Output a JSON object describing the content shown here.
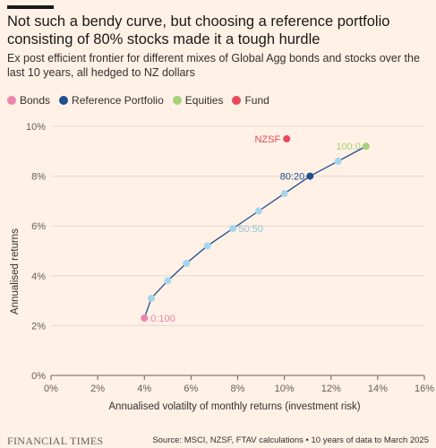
{
  "title": "Not such a bendy curve, but choosing a reference portfolio consisting of 80% stocks made it a tough hurdle",
  "subtitle": "Ex post efficient frontier for different mixes of Global Agg bonds and stocks over the last 10 years, all hedged to NZ dollars",
  "legend": [
    {
      "label": "Bonds",
      "color": "#f083ae"
    },
    {
      "label": "Reference Portfolio",
      "color": "#1f4f8f"
    },
    {
      "label": "Equities",
      "color": "#a7d17a"
    },
    {
      "label": "Fund",
      "color": "#e8495c"
    }
  ],
  "chart_data": {
    "type": "scatter",
    "xlabel": "Annualised volatilty of monthly returns (investment risk)",
    "ylabel": "Annualised returns",
    "xlim": [
      0,
      16
    ],
    "ylim": [
      0,
      10
    ],
    "x_ticks": [
      "0%",
      "2%",
      "4%",
      "6%",
      "8%",
      "10%",
      "12%",
      "14%",
      "16%"
    ],
    "y_ticks": [
      "0%",
      "2%",
      "4%",
      "6%",
      "8%",
      "10%"
    ],
    "line_color": "#1f4f8f",
    "grid": "horizontal",
    "frontier": [
      {
        "x": 4.0,
        "y": 2.3,
        "color": "#f083ae",
        "label": "0:100",
        "label_color": "#f083ae"
      },
      {
        "x": 4.3,
        "y": 3.1,
        "color": "#a6d6ee"
      },
      {
        "x": 5.0,
        "y": 3.8,
        "color": "#a6d6ee"
      },
      {
        "x": 5.8,
        "y": 4.5,
        "color": "#a6d6ee"
      },
      {
        "x": 6.7,
        "y": 5.2,
        "color": "#a6d6ee"
      },
      {
        "x": 7.8,
        "y": 5.9,
        "color": "#a6d6ee",
        "label": "50:50",
        "label_color": "#8ec3dc"
      },
      {
        "x": 8.9,
        "y": 6.6,
        "color": "#a6d6ee"
      },
      {
        "x": 10.0,
        "y": 7.3,
        "color": "#a6d6ee"
      },
      {
        "x": 11.1,
        "y": 8.0,
        "color": "#1f4f8f",
        "label": "80:20",
        "label_color": "#1f4f8f"
      },
      {
        "x": 12.3,
        "y": 8.6,
        "color": "#a6d6ee"
      },
      {
        "x": 13.5,
        "y": 9.2,
        "color": "#a7d17a",
        "label": "100:0",
        "label_color": "#a7d17a"
      }
    ],
    "fund": {
      "x": 10.1,
      "y": 9.5,
      "color": "#e8495c",
      "label": "NZSF",
      "label_color": "#e8495c"
    }
  },
  "footer": {
    "brand": "FINANCIAL TIMES",
    "source": "Source: MSCI, NZSF, FTAV calculations • 10 years of data to March 2025"
  }
}
